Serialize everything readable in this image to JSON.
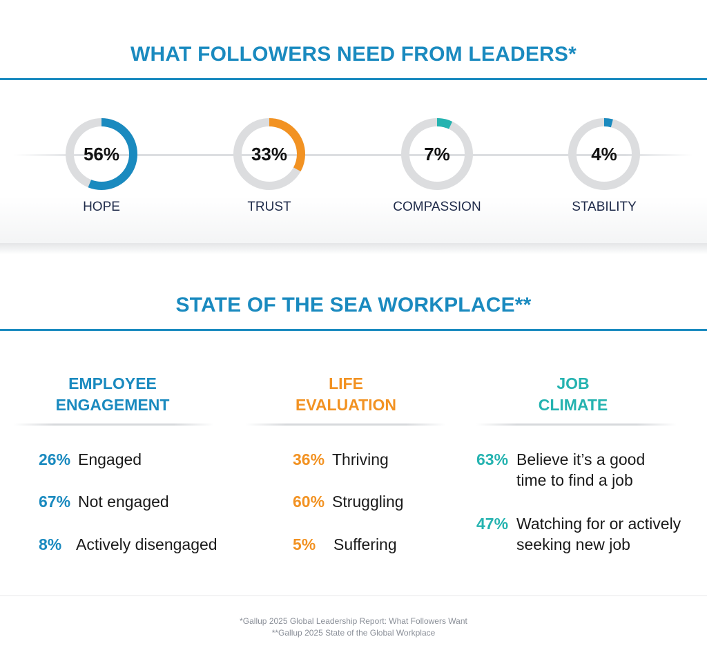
{
  "top_section": {
    "title": "WHAT FOLLOWERS NEED FROM LEADERS*"
  },
  "chart_data": {
    "type": "pie",
    "title": "WHAT FOLLOWERS NEED FROM LEADERS*",
    "series": [
      {
        "label": "HOPE",
        "value": 56,
        "display": "56%",
        "color": "#1a8abf"
      },
      {
        "label": "TRUST",
        "value": 33,
        "display": "33%",
        "color": "#f29222"
      },
      {
        "label": "COMPASSION",
        "value": 7,
        "display": "7%",
        "color": "#25b3b0"
      },
      {
        "label": "STABILITY",
        "value": 4,
        "display": "4%",
        "color": "#1a8abf"
      }
    ],
    "track_color": "#dcdddf"
  },
  "bottom_section": {
    "title": "STATE OF THE SEA WORKPLACE**",
    "columns": [
      {
        "heading_line1": "EMPLOYEE",
        "heading_line2": "ENGAGEMENT",
        "color": "#1a8abf",
        "stats": [
          {
            "pct": "26%",
            "text": "Engaged"
          },
          {
            "pct": "67%",
            "text": "Not engaged"
          },
          {
            "pct": "8%",
            "text": "Actively disengaged"
          }
        ]
      },
      {
        "heading_line1": "LIFE",
        "heading_line2": "EVALUATION",
        "color": "#f29222",
        "stats": [
          {
            "pct": "36%",
            "text": "Thriving"
          },
          {
            "pct": "60%",
            "text": "Struggling"
          },
          {
            "pct": "5%",
            "text": "Suffering"
          }
        ]
      },
      {
        "heading_line1": "JOB",
        "heading_line2": "CLIMATE",
        "color": "#25b3b0",
        "stats": [
          {
            "pct": "63%",
            "line1": "Believe it’s a good",
            "line2": "time to find a job"
          },
          {
            "pct": "47%",
            "line1": "Watching for or actively",
            "line2": "seeking new job"
          }
        ]
      }
    ]
  },
  "footnotes": {
    "line1": "*Gallup 2025 Global Leadership Report: What Followers Want",
    "line2": "**Gallup 2025 State of the Global Workplace"
  }
}
